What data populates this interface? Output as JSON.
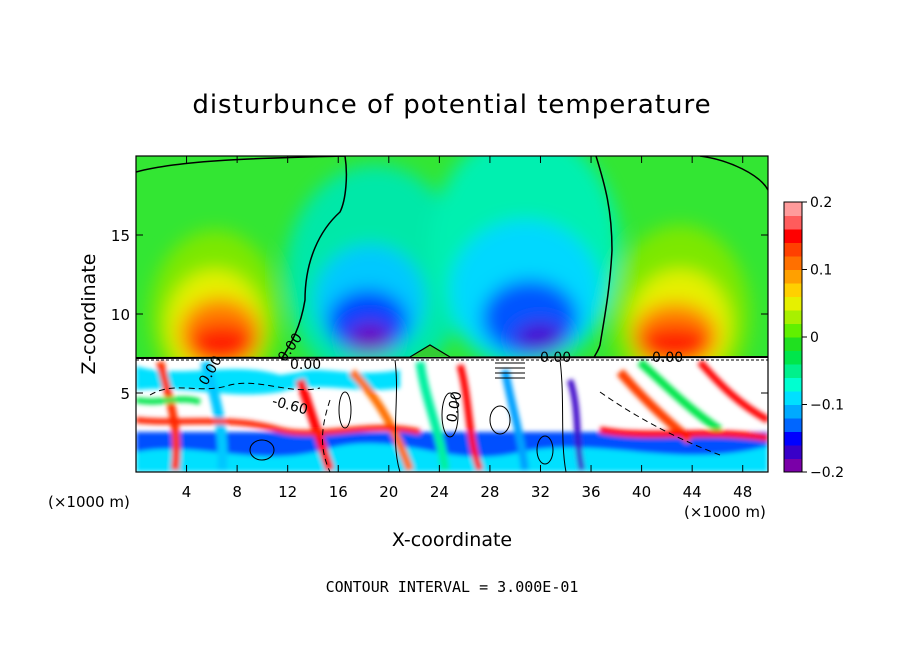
{
  "chart_data": {
    "type": "heatmap",
    "title": "disturbunce of potential temperature",
    "xlabel": "X-coordinate",
    "ylabel": "Z-coordinate",
    "x_unit": "(×1000 m)",
    "y_unit": "(×1000 m)",
    "xlim": [
      0,
      50
    ],
    "ylim": [
      0,
      20
    ],
    "x_ticks": [
      4,
      8,
      12,
      16,
      20,
      24,
      28,
      32,
      36,
      40,
      44,
      48
    ],
    "y_ticks": [
      5,
      10,
      15
    ],
    "colorbar": {
      "range": [
        -0.2,
        0.2
      ],
      "tick_values": [
        0.2,
        0.1,
        0,
        -0.1,
        -0.2
      ],
      "tick_labels": [
        "0.2",
        "0.1",
        "0",
        "−0.1",
        "−0.2"
      ],
      "colors": [
        "#7a00a8",
        "#3800c8",
        "#0000ff",
        "#0066ff",
        "#00aaff",
        "#00e0ff",
        "#00ffd0",
        "#00f08c",
        "#00e64b",
        "#20e020",
        "#60f000",
        "#a8f000",
        "#e6f000",
        "#ffd000",
        "#ffa000",
        "#ff7000",
        "#ff4000",
        "#ff0000",
        "#ff5c5c",
        "#ff9b9b"
      ]
    },
    "contour_labels": [
      "0.00",
      "0.00",
      "0.00",
      "0.00",
      "-0.60",
      "0.00",
      "0.00"
    ],
    "footnote": "CONTOUR INTERVAL = 3.000E-01"
  }
}
